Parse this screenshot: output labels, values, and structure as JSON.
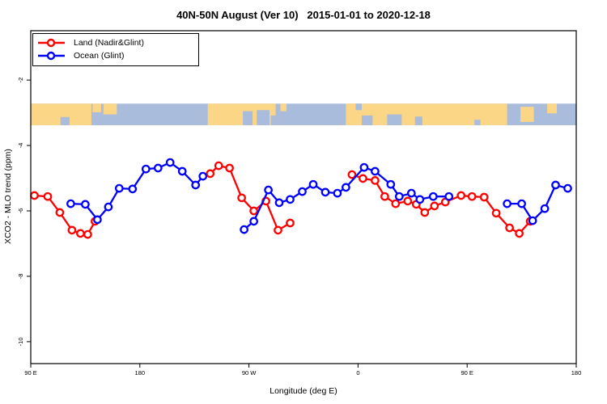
{
  "title": "40N-50N August (Ver 10)   2015-01-01 to 2020-12-18",
  "legend": {
    "items": [
      {
        "label": "Land (Nadir&Glint)",
        "color": "#FF0000"
      },
      {
        "label": "Ocean (Glint)",
        "color": "#0000FF"
      }
    ]
  },
  "chart_data": {
    "type": "line",
    "title": "40N-50N August (Ver 10)   2015-01-01 to 2020-12-18",
    "xlabel": "Longitude (deg E)",
    "ylabel": "XCO2 - MLO trend (ppm)",
    "xlim": [
      90,
      540
    ],
    "ylim": [
      -10.67,
      -0.49
    ],
    "grid": false,
    "legend_position": "top-left",
    "x_ticks": {
      "values": [
        90,
        180,
        270,
        360,
        450,
        540
      ],
      "labels": [
        "90 E",
        "180",
        "90 W",
        "0",
        "90 E",
        "180"
      ]
    },
    "y_ticks": {
      "values": [
        -2,
        -4,
        -6,
        -8,
        -10
      ],
      "labels": [
        "-2",
        "-4",
        "-6",
        "-8",
        "-10"
      ]
    },
    "series": [
      {
        "name": "Land (Nadir&Glint)",
        "color": "#FF0000",
        "marker": "open-circle",
        "segments": [
          [
            [
              93,
              -5.53
            ],
            [
              104,
              -5.56
            ],
            [
              114,
              -6.05
            ],
            [
              124,
              -6.59
            ],
            [
              131,
              -6.69
            ],
            [
              137,
              -6.72
            ],
            [
              143,
              -6.32
            ]
          ],
          [
            [
              238,
              -4.86
            ],
            [
              245,
              -4.62
            ],
            [
              254,
              -4.69
            ],
            [
              264,
              -5.6
            ],
            [
              274,
              -6.0
            ],
            [
              284,
              -5.7
            ],
            [
              294,
              -6.59
            ],
            [
              304,
              -6.37
            ]
          ],
          [
            [
              355,
              -4.89
            ],
            [
              364,
              -5.01
            ],
            [
              374,
              -5.07
            ],
            [
              382,
              -5.56
            ],
            [
              391,
              -5.78
            ],
            [
              401,
              -5.7
            ],
            [
              408,
              -5.8
            ],
            [
              415,
              -6.05
            ],
            [
              423,
              -5.85
            ],
            [
              432,
              -5.73
            ],
            [
              445,
              -5.53
            ],
            [
              454,
              -5.56
            ],
            [
              464,
              -5.58
            ],
            [
              474,
              -6.07
            ],
            [
              485,
              -6.52
            ],
            [
              493,
              -6.69
            ],
            [
              502,
              -6.32
            ]
          ]
        ]
      },
      {
        "name": "Ocean (Glint)",
        "color": "#0000FF",
        "marker": "open-circle",
        "segments": [
          [
            [
              123,
              -5.78
            ],
            [
              135,
              -5.8
            ],
            [
              145,
              -6.27
            ],
            [
              154,
              -5.88
            ],
            [
              163,
              -5.31
            ],
            [
              174,
              -5.33
            ],
            [
              185,
              -4.72
            ],
            [
              195,
              -4.69
            ],
            [
              205,
              -4.52
            ],
            [
              215,
              -4.79
            ],
            [
              226,
              -5.21
            ],
            [
              232,
              -4.94
            ]
          ],
          [
            [
              266,
              -6.57
            ],
            [
              274,
              -6.32
            ],
            [
              286,
              -5.36
            ],
            [
              295,
              -5.75
            ],
            [
              304,
              -5.65
            ],
            [
              314,
              -5.41
            ],
            [
              323,
              -5.19
            ],
            [
              333,
              -5.43
            ],
            [
              343,
              -5.46
            ],
            [
              350,
              -5.28
            ],
            [
              365,
              -4.67
            ],
            [
              374,
              -4.79
            ],
            [
              387,
              -5.19
            ],
            [
              394,
              -5.56
            ],
            [
              404,
              -5.46
            ],
            [
              411,
              -5.65
            ],
            [
              422,
              -5.56
            ],
            [
              435,
              -5.56
            ]
          ],
          [
            [
              483,
              -5.78
            ],
            [
              495,
              -5.78
            ],
            [
              504,
              -6.3
            ],
            [
              514,
              -5.93
            ],
            [
              523,
              -5.21
            ],
            [
              533,
              -5.31
            ]
          ]
        ]
      }
    ],
    "map_band": {
      "description": "world coastline strip 40N-50N",
      "y_range_ppm": [
        -2.72,
        -3.38
      ],
      "ocean_color": "#A9BCDB",
      "land_color": "#FBD687",
      "rects": [
        {
          "type": "ocean",
          "lon": [
            90,
            540
          ],
          "y": [
            0,
            1
          ]
        },
        {
          "type": "land",
          "lon": [
            90,
            140
          ],
          "y": [
            0,
            1
          ]
        },
        {
          "type": "ocean",
          "lon": [
            114.5,
            122
          ],
          "y": [
            0.62,
            1
          ]
        },
        {
          "type": "land",
          "lon": [
            141,
            148
          ],
          "y": [
            0,
            0.4
          ]
        },
        {
          "type": "land",
          "lon": [
            150,
            161
          ],
          "y": [
            0,
            0.5
          ]
        },
        {
          "type": "land",
          "lon": [
            236,
            292
          ],
          "y": [
            0,
            1
          ]
        },
        {
          "type": "ocean",
          "lon": [
            265,
            273
          ],
          "y": [
            0.35,
            1
          ]
        },
        {
          "type": "ocean",
          "lon": [
            276.5,
            287
          ],
          "y": [
            0.3,
            1
          ]
        },
        {
          "type": "ocean",
          "lon": [
            288,
            292
          ],
          "y": [
            0.55,
            1
          ]
        },
        {
          "type": "land",
          "lon": [
            296,
            301
          ],
          "y": [
            0,
            0.35
          ]
        },
        {
          "type": "land",
          "lon": [
            350,
            483
          ],
          "y": [
            0,
            1
          ]
        },
        {
          "type": "ocean",
          "lon": [
            358,
            363
          ],
          "y": [
            0,
            0.3
          ]
        },
        {
          "type": "ocean",
          "lon": [
            363,
            372
          ],
          "y": [
            0.55,
            1
          ]
        },
        {
          "type": "ocean",
          "lon": [
            384,
            396
          ],
          "y": [
            0.5,
            1
          ]
        },
        {
          "type": "ocean",
          "lon": [
            407,
            413
          ],
          "y": [
            0.6,
            1
          ]
        },
        {
          "type": "ocean",
          "lon": [
            456,
            461
          ],
          "y": [
            0.75,
            1
          ]
        },
        {
          "type": "land",
          "lon": [
            494,
            505
          ],
          "y": [
            0.15,
            0.85
          ]
        },
        {
          "type": "land",
          "lon": [
            516,
            524
          ],
          "y": [
            0,
            0.45
          ]
        }
      ]
    }
  }
}
